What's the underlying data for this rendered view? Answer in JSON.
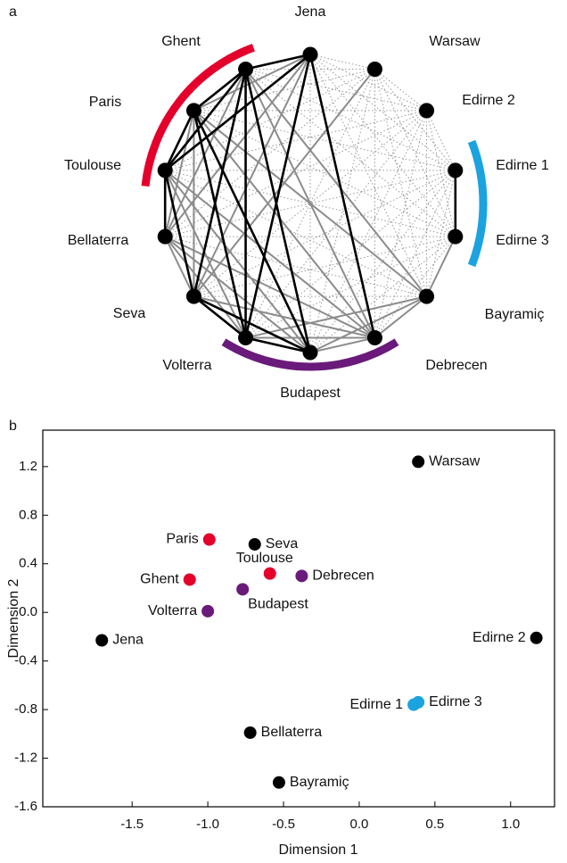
{
  "network": {
    "panel_label": "a",
    "nodes": [
      "Jena",
      "Warsaw",
      "Edirne 2",
      "Edirne 1",
      "Edirne 3",
      "Bayramiç",
      "Debrecen",
      "Budapest",
      "Volterra",
      "Seva",
      "Bellaterra",
      "Toulouse",
      "Paris",
      "Ghent"
    ]
  },
  "chart_data": {
    "type": "scatter",
    "panel_label": "b",
    "xlabel": "Dimension 1",
    "ylabel": "Dimension 2",
    "labels": [
      "Warsaw",
      "Paris",
      "Seva",
      "Toulouse",
      "Ghent",
      "Debrecen",
      "Budapest",
      "Volterra",
      "Jena",
      "Edirne 2",
      "Edirne 1",
      "Edirne 3",
      "Bellaterra",
      "Bayramiç"
    ],
    "x": [
      0.39,
      -0.99,
      -0.69,
      -0.59,
      -1.12,
      -0.38,
      -0.77,
      -1.0,
      -1.7,
      1.17,
      0.36,
      0.39,
      -0.72,
      -0.53
    ],
    "values": [
      1.24,
      0.6,
      0.56,
      0.32,
      0.27,
      0.3,
      0.19,
      0.01,
      -0.23,
      -0.21,
      -0.76,
      -0.74,
      -0.99,
      -1.4
    ],
    "colors": [
      "#000000",
      "#e4002b",
      "#000000",
      "#e4002b",
      "#e4002b",
      "#6a1a7a",
      "#6a1a7a",
      "#6a1a7a",
      "#000000",
      "#000000",
      "#1ba3e0",
      "#1ba3e0",
      "#000000",
      "#000000"
    ],
    "xlim": [
      -2.09,
      1.29
    ],
    "ylim": [
      -1.6,
      1.5
    ],
    "xticks": [
      -1.5,
      {
        "value": -1,
        "label": "-1.0"
      },
      -0.5,
      {
        "value": 0,
        "label": "0.0"
      },
      0.5,
      {
        "value": 1,
        "label": "1.0"
      }
    ],
    "yticks": [
      1.2,
      0.8,
      0.4,
      {
        "value": 0,
        "label": "0.0"
      },
      -0.4,
      -0.8,
      -1.2,
      -1.6
    ]
  }
}
